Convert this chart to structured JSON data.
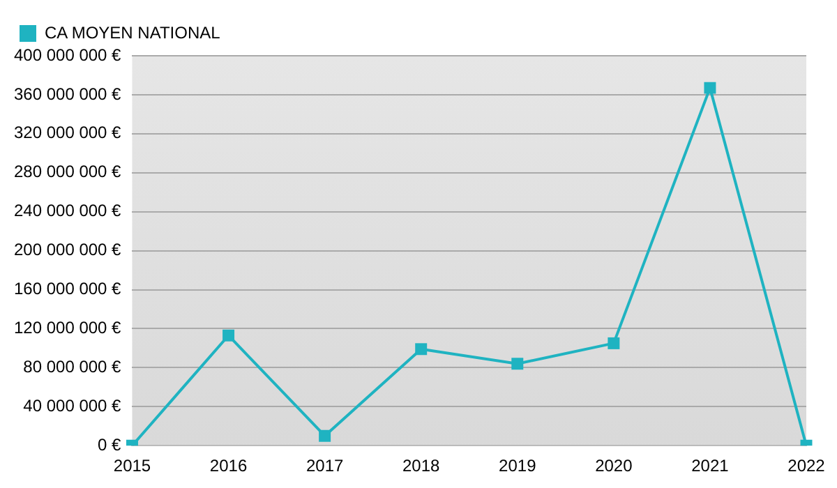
{
  "chart_data": {
    "type": "line",
    "categories": [
      "2015",
      "2016",
      "2017",
      "2018",
      "2019",
      "2020",
      "2021",
      "2022"
    ],
    "series": [
      {
        "name": "CA MOYEN NATIONAL",
        "color": "#1fb3c1",
        "values": [
          0,
          113000000,
          10000000,
          99000000,
          84000000,
          105000000,
          367000000,
          0
        ]
      }
    ],
    "ylim": [
      0,
      400000000
    ],
    "yticks": [
      {
        "value": 0,
        "label": "0 €"
      },
      {
        "value": 40000000,
        "label": "40 000 000 €"
      },
      {
        "value": 80000000,
        "label": "80 000 000 €"
      },
      {
        "value": 120000000,
        "label": "120 000 000 €"
      },
      {
        "value": 160000000,
        "label": "160 000 000 €"
      },
      {
        "value": 200000000,
        "label": "200 000 000 €"
      },
      {
        "value": 240000000,
        "label": "240 000 000 €"
      },
      {
        "value": 280000000,
        "label": "280 000 000 €"
      },
      {
        "value": 320000000,
        "label": "320 000 000 €"
      },
      {
        "value": 360000000,
        "label": "360 000 000 €"
      },
      {
        "value": 400000000,
        "label": "400 000 000 €"
      }
    ],
    "grid": "y",
    "legend": "top left",
    "marker": "square",
    "line_style": "solid"
  }
}
